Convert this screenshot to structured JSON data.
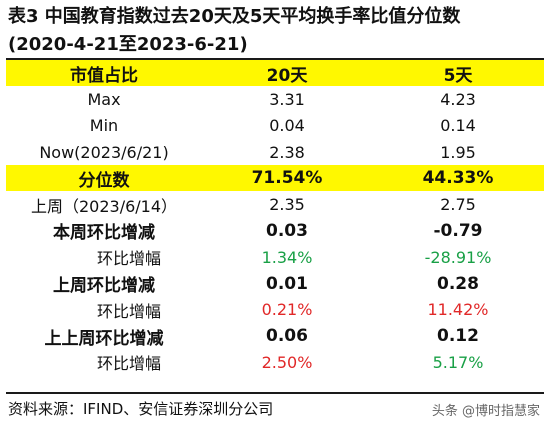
{
  "title": {
    "line1": "表3 中国教育指数过去20天及5天平均换手率比值分位数",
    "line2": "(2020-4-21至2023-6-21)"
  },
  "table": {
    "header": [
      "市值占比",
      "20天",
      "5天"
    ],
    "rows": [
      {
        "label": "Max",
        "v20": "3.31",
        "v5": "4.23"
      },
      {
        "label": "Min",
        "v20": "0.04",
        "v5": "0.14"
      },
      {
        "label": "Now(2023/6/21)",
        "v20": "2.38",
        "v5": "1.95"
      },
      {
        "label": "分位数",
        "v20": "71.54%",
        "v5": "44.33%"
      },
      {
        "label": "上周（2023/6/14）",
        "v20": "2.35",
        "v5": "2.75"
      },
      {
        "label": "本周环比增减",
        "v20": "0.03",
        "v5": "-0.79"
      },
      {
        "label": "环比增幅",
        "v20": "1.34%",
        "v5": "-28.91%"
      },
      {
        "label": "上周环比增减",
        "v20": "0.01",
        "v5": "0.28"
      },
      {
        "label": "环比增幅",
        "v20": "0.21%",
        "v5": "11.42%"
      },
      {
        "label": "上上周环比增减",
        "v20": "0.06",
        "v5": "0.12"
      },
      {
        "label": "环比增幅",
        "v20": "2.50%",
        "v5": "5.17%"
      }
    ]
  },
  "colors": {
    "highlight": "#fff800",
    "positive_change": "#19a046",
    "negative_change": "#e12828"
  },
  "source": "资料来源：IFIND、安信证券深圳分公司",
  "watermark": "头条 @博时指慧家"
}
